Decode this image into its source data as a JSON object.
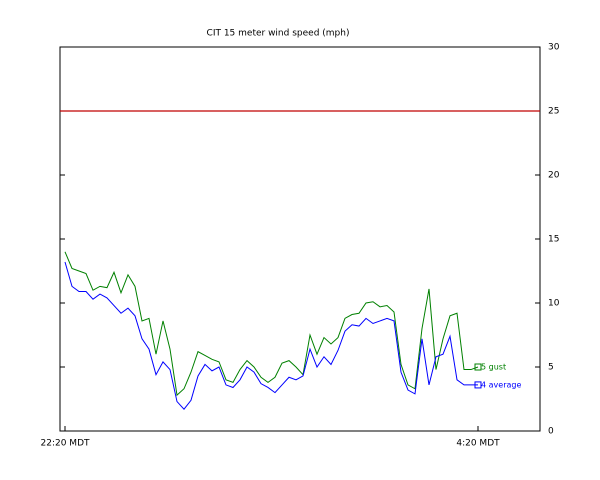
{
  "chart_data": {
    "type": "line",
    "title": "CIT 15 meter wind speed (mph)",
    "categories": [
      "22:20 MDT",
      null,
      null,
      null,
      null,
      null,
      null,
      null,
      null,
      null,
      null,
      null,
      null,
      null,
      null,
      null,
      null,
      null,
      null,
      null,
      null,
      null,
      null,
      null,
      null,
      null,
      null,
      null,
      null,
      null,
      null,
      null,
      null,
      null,
      null,
      null,
      null,
      null,
      null,
      null,
      null,
      null,
      null,
      null,
      null,
      null,
      null,
      null,
      null,
      null,
      null,
      null,
      null,
      null,
      null,
      null,
      null,
      null,
      null,
      "4:20 MDT"
    ],
    "series": [
      {
        "name": "5 gust",
        "color": "#008000",
        "values": [
          14.0,
          12.7,
          12.5,
          12.3,
          11.0,
          11.3,
          11.2,
          12.4,
          10.8,
          12.2,
          11.3,
          8.6,
          8.8,
          6.0,
          8.6,
          6.4,
          2.8,
          3.3,
          4.6,
          6.2,
          5.9,
          5.6,
          5.4,
          4.0,
          3.8,
          4.8,
          5.5,
          5.0,
          4.2,
          3.8,
          4.2,
          5.3,
          5.5,
          5.0,
          4.4,
          7.5,
          6.0,
          7.3,
          6.8,
          7.3,
          8.8,
          9.1,
          9.2,
          10.0,
          10.1,
          9.7,
          9.8,
          9.3,
          5.2,
          3.6,
          3.3,
          8.0,
          11.1,
          4.8,
          7.2,
          9.0,
          9.2,
          4.8,
          4.8,
          5.0
        ]
      },
      {
        "name": "4 average",
        "color": "#0000ff",
        "values": [
          13.2,
          11.3,
          10.9,
          10.9,
          10.3,
          10.7,
          10.4,
          9.8,
          9.2,
          9.6,
          9.0,
          7.2,
          6.4,
          4.4,
          5.4,
          4.8,
          2.3,
          1.7,
          2.4,
          4.3,
          5.2,
          4.7,
          5.0,
          3.6,
          3.4,
          4.0,
          5.0,
          4.6,
          3.7,
          3.4,
          3.0,
          3.6,
          4.2,
          4.0,
          4.3,
          6.4,
          5.0,
          5.8,
          5.2,
          6.3,
          7.8,
          8.3,
          8.2,
          8.8,
          8.4,
          8.6,
          8.8,
          8.6,
          4.6,
          3.2,
          2.9,
          7.2,
          3.6,
          5.8,
          6.0,
          7.4,
          4.0,
          3.6,
          3.6,
          3.6
        ]
      }
    ],
    "reference_line": {
      "value": 25,
      "color": "#c00000"
    },
    "ylim": [
      0,
      30
    ],
    "yticks": [
      0,
      5,
      10,
      15,
      20,
      25,
      30
    ],
    "y_axis_side": "right"
  }
}
